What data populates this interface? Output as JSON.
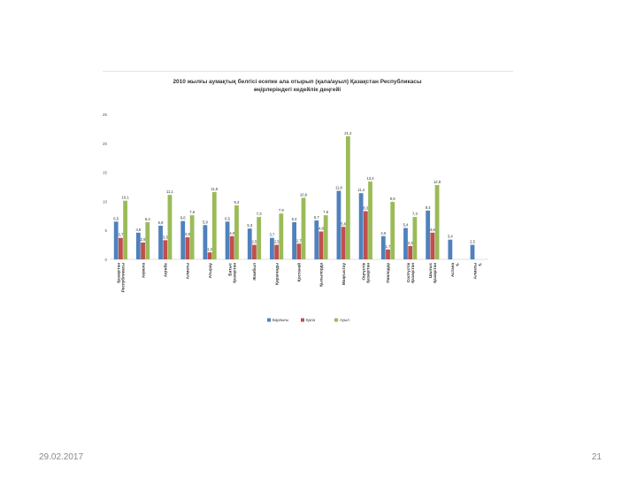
{
  "slide": {
    "date": "29.02.2017",
    "number": "21"
  },
  "chart_data": {
    "type": "bar",
    "title": "2010 жылғы аумақтық белгісі есепке ала отырып (қала/ауыл) Қазақстан Республикасы өңірлеріндегі кедейлік деңгейі",
    "title_lines": [
      "2010 жылғы аумақтық белгісі есепке ала отырып (қала/ауыл) Қазақстан Республикасы",
      "өңірлеріндегі кедейлік деңгейі"
    ],
    "ylim": [
      0,
      25
    ],
    "yticks": [
      0,
      5,
      10,
      15,
      20,
      25
    ],
    "categories": [
      "Қазақстан Республикасы",
      "Ақмола",
      "Ақтөбе",
      "Алматы",
      "Атырау",
      "Батыс Қазақстан",
      "Жамбыл",
      "Қарағанды",
      "Қостанай",
      "Қызылорда",
      "Маңғыстау",
      "Оңтүстік Қазақстан",
      "Павлодар",
      "Солтүстік Қазақстан",
      "Шығыс Қазақстан",
      "Астана қ.",
      "Алматы қ."
    ],
    "series": [
      {
        "name": "Барлығы",
        "color": "#4f81bd",
        "values": [
          6.5,
          4.6,
          5.8,
          6.6,
          5.9,
          6.5,
          5.3,
          3.7,
          6.4,
          6.7,
          11.8,
          11.4,
          4.0,
          5.4,
          8.4,
          3.4,
          2.5
        ],
        "labels": [
          "6,5",
          "4,6",
          "5,8",
          "6,6",
          "5,9",
          "6,5",
          "5,3",
          "3,7",
          "6,4",
          "6,7",
          "11,8",
          "11,4",
          "4,0",
          "5,4",
          "8,4",
          "3,4",
          "2,5"
        ]
      },
      {
        "name": "Қала",
        "color": "#c0504d",
        "values": [
          3.7,
          2.9,
          3.3,
          3.8,
          1.2,
          4.0,
          2.5,
          2.5,
          2.7,
          4.8,
          5.6,
          8.3,
          1.7,
          2.3,
          4.6,
          null,
          null
        ],
        "labels": [
          "3,7",
          "2,9",
          "3,3",
          "3,8",
          "1,2",
          "4,0",
          "2,5",
          "2,5",
          "2,7",
          "4,8",
          "5,6",
          "8,3",
          "1,7",
          "2,3",
          "4,6",
          "",
          ""
        ]
      },
      {
        "name": "Ауыл",
        "color": "#9bbb59",
        "values": [
          10.1,
          6.4,
          11.1,
          7.6,
          11.6,
          9.3,
          7.3,
          7.9,
          10.6,
          7.6,
          21.2,
          13.4,
          9.9,
          7.3,
          12.8,
          null,
          null
        ],
        "labels": [
          "10,1",
          "6,4",
          "11,1",
          "7,6",
          "11,6",
          "9,3",
          "7,3",
          "7,9",
          "10,6",
          "7,6",
          "21,2",
          "13,4",
          "9,9",
          "7,3",
          "12,8",
          "",
          ""
        ]
      }
    ],
    "grid": false,
    "legend": "bottom"
  }
}
